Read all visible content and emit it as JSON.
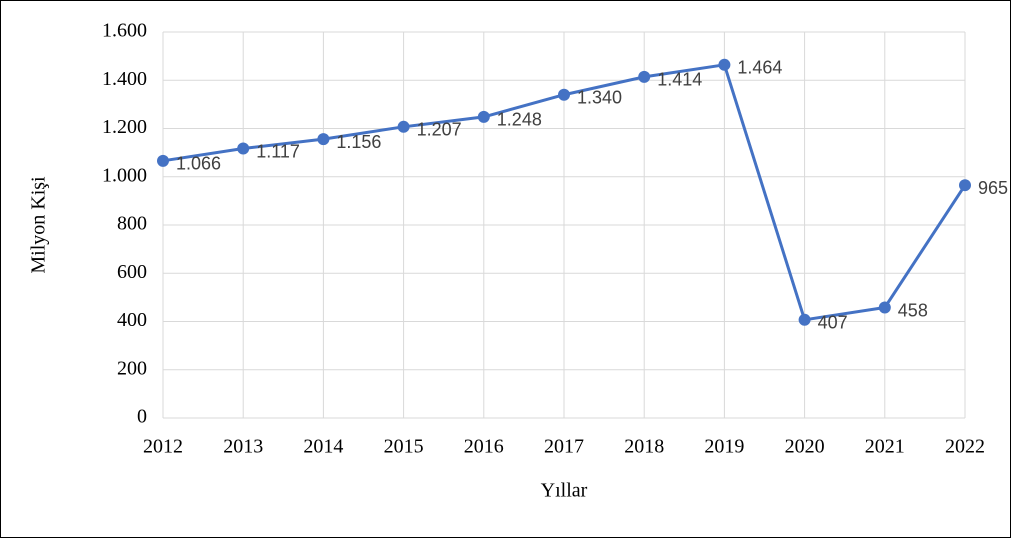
{
  "chart_data": {
    "type": "line",
    "x_label": "Yıllar",
    "y_label": "Milyon Kişi",
    "x": [
      2012,
      2013,
      2014,
      2015,
      2016,
      2017,
      2018,
      2019,
      2020,
      2021,
      2022
    ],
    "xlim": [
      2012,
      2022
    ],
    "xticks": [
      2012,
      2013,
      2014,
      2015,
      2016,
      2017,
      2018,
      2019,
      2020,
      2021,
      2022
    ],
    "series": [
      {
        "color": "#4472c4",
        "values": [
          1066,
          1117,
          1156,
          1207,
          1248,
          1340,
          1414,
          1464,
          407,
          458,
          965
        ],
        "value_labels": [
          "1.066",
          "1.117",
          "1.156",
          "1.207",
          "1.248",
          "1.340",
          "1.414",
          "1.464",
          "407",
          "458",
          "965"
        ]
      }
    ],
    "ylim": [
      0,
      1600
    ],
    "yticks": [
      0,
      200,
      400,
      600,
      800,
      {
        "value": 1000,
        "label": "1.000"
      },
      {
        "value": 1200,
        "label": "1.200"
      },
      {
        "value": 1400,
        "label": "1.400"
      },
      {
        "value": 1600,
        "label": "1.600"
      }
    ],
    "grid": true
  }
}
